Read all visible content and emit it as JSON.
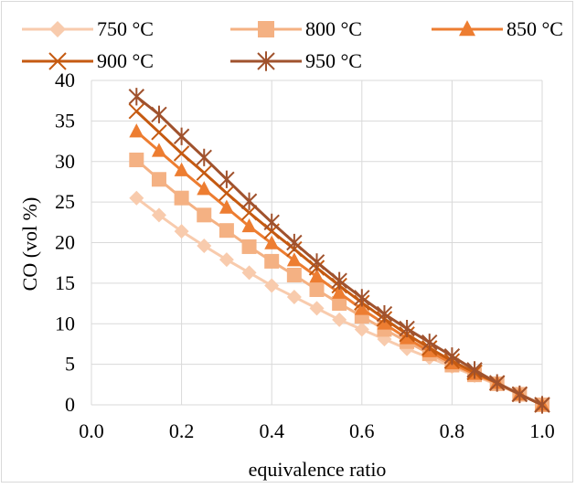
{
  "chart_data": {
    "type": "line",
    "xlabel": "equivalence ratio",
    "ylabel": "CO (vol %)",
    "xlim": [
      0.0,
      1.0
    ],
    "ylim": [
      0,
      40
    ],
    "xticks": [
      "0.0",
      "0.2",
      "0.4",
      "0.6",
      "0.8",
      "1.0"
    ],
    "yticks": [
      "0",
      "5",
      "10",
      "15",
      "20",
      "25",
      "30",
      "35",
      "40"
    ],
    "grid": true,
    "legend_position": "top",
    "x": [
      0.1,
      0.15,
      0.2,
      0.25,
      0.3,
      0.35,
      0.4,
      0.45,
      0.5,
      0.55,
      0.6,
      0.65,
      0.7,
      0.75,
      0.8,
      0.85,
      0.9,
      0.95,
      1.0
    ],
    "series": [
      {
        "name": "750 °C",
        "marker": "diamond",
        "color": "#f8cbad",
        "values": [
          25.5,
          23.4,
          21.4,
          19.6,
          17.9,
          16.3,
          14.7,
          13.3,
          11.9,
          10.5,
          9.3,
          8.1,
          6.9,
          5.8,
          4.7,
          3.6,
          2.5,
          1.3,
          0
        ]
      },
      {
        "name": "800 °C",
        "marker": "square",
        "color": "#f4b183",
        "values": [
          30.2,
          27.8,
          25.5,
          23.4,
          21.5,
          19.5,
          17.7,
          16.0,
          14.2,
          12.5,
          10.9,
          9.3,
          7.8,
          6.3,
          4.9,
          3.7,
          2.6,
          1.3,
          0
        ]
      },
      {
        "name": "850 °C",
        "marker": "triangle",
        "color": "#ed7d31",
        "values": [
          33.7,
          31.3,
          28.9,
          26.6,
          24.3,
          22.0,
          19.9,
          17.8,
          15.8,
          13.8,
          11.8,
          10.0,
          8.2,
          6.6,
          5.1,
          3.8,
          2.7,
          1.3,
          0
        ]
      },
      {
        "name": "900 °C",
        "marker": "x",
        "color": "#c55a11",
        "values": [
          36.2,
          33.6,
          31.0,
          28.6,
          26.1,
          23.7,
          21.4,
          19.2,
          16.9,
          14.7,
          12.6,
          10.6,
          8.7,
          7.0,
          5.4,
          4.0,
          2.7,
          1.3,
          0
        ]
      },
      {
        "name": "950 °C",
        "marker": "star",
        "color": "#a0522d",
        "values": [
          38.0,
          35.8,
          33.1,
          30.5,
          27.8,
          25.1,
          22.5,
          20.0,
          17.6,
          15.3,
          13.2,
          11.2,
          9.4,
          7.7,
          6.0,
          4.3,
          2.7,
          1.3,
          0
        ]
      }
    ]
  }
}
